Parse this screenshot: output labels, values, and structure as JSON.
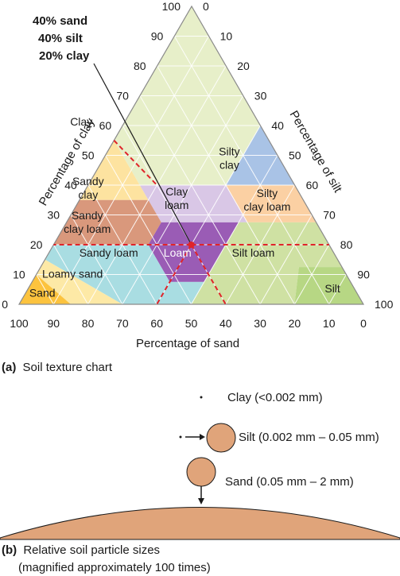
{
  "figure_a": {
    "caption_letter": "(a)",
    "caption_text": "Soil texture chart",
    "axes": {
      "clay_label": "Percentage of clay",
      "silt_label": "Percentage of silt",
      "sand_label": "Percentage of sand",
      "ticks": [
        "0",
        "10",
        "20",
        "30",
        "40",
        "50",
        "60",
        "70",
        "80",
        "90",
        "100"
      ]
    },
    "example_point": {
      "sand": 40,
      "silt": 40,
      "clay": 20,
      "lines": [
        "40% sand",
        "40% silt",
        "20% clay"
      ]
    },
    "regions": [
      {
        "key": "clay",
        "label": "Clay",
        "color": "#e7efc9"
      },
      {
        "key": "sandy_clay",
        "label": "Sandy clay",
        "color": "#fde3a0"
      },
      {
        "key": "silty_clay",
        "label": "Silty clay",
        "color": "#a9c3e6"
      },
      {
        "key": "clay_loam",
        "label": "Clay loam",
        "color": "#d9c7e6"
      },
      {
        "key": "silty_clay_loam",
        "label": "Silty clay loam",
        "color": "#fbd0a3"
      },
      {
        "key": "sandy_clay_loam",
        "label": "Sandy clay loam",
        "color": "#d9987c"
      },
      {
        "key": "loam",
        "label": "Loam",
        "color": "#9a5cb5"
      },
      {
        "key": "silt_loam",
        "label": "Silt loam",
        "color": "#cfe1a3"
      },
      {
        "key": "sandy_loam",
        "label": "Sandy loam",
        "color": "#a9dde2"
      },
      {
        "key": "loamy_sand",
        "label": "Loamy sand",
        "color": "#fde9a6"
      },
      {
        "key": "sand",
        "label": "Sand",
        "color": "#fcc33e"
      },
      {
        "key": "silt",
        "label": "Silt",
        "color": "#b7d784"
      }
    ],
    "highlight_color": "#e0242a"
  },
  "figure_b": {
    "caption_letter": "(b)",
    "caption_line1": "Relative soil particle sizes",
    "caption_line2": "(magnified approximately 100 times)",
    "particle_color": "#e0a47a",
    "particles": [
      {
        "label": "Clay (<0.002 mm)"
      },
      {
        "label": "Silt (0.002 mm – 0.05 mm)"
      },
      {
        "label": "Sand (0.05 mm – 2 mm)"
      }
    ]
  }
}
